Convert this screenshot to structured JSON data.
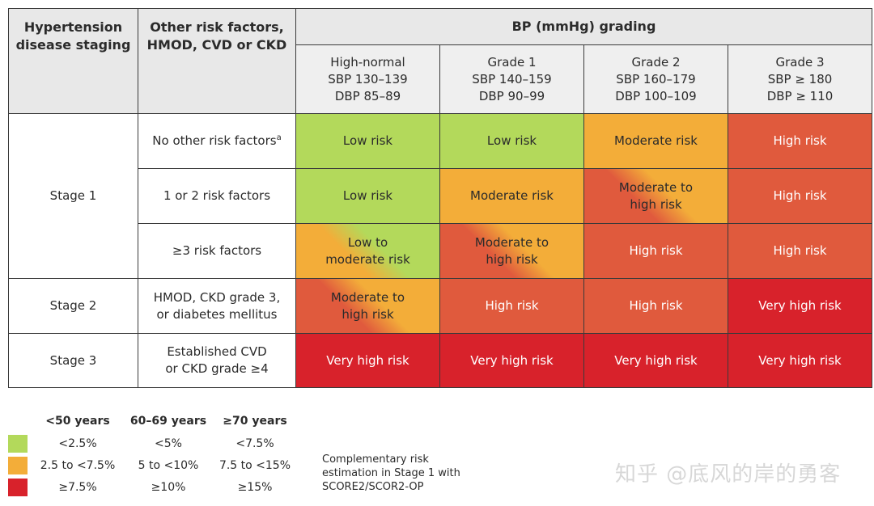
{
  "header": {
    "col1": "Hypertension disease staging",
    "col2": "Other risk factors, HMOD, CVD or CKD",
    "grading": "BP (mmHg) grading"
  },
  "grades": [
    {
      "name": "High-normal",
      "sbp": "SBP 130–139",
      "dbp": "DBP 85–89"
    },
    {
      "name": "Grade 1",
      "sbp": "SBP 140–159",
      "dbp": "DBP 90–99"
    },
    {
      "name": "Grade 2",
      "sbp": "SBP 160–179",
      "dbp": "DBP 100–109"
    },
    {
      "name": "Grade 3",
      "sbp": "SBP ≥ 180",
      "dbp": "DBP ≥ 110"
    }
  ],
  "stages": {
    "s1": "Stage 1",
    "s2": "Stage 2",
    "s3": "Stage 3"
  },
  "factors": {
    "r1": "No other risk factors",
    "r1_sup": "a",
    "r2": "1 or 2 risk factors",
    "r3": "≥3 risk factors",
    "r4": "HMOD, CKD grade 3, or diabetes mellitus",
    "r5": "Established CVD or CKD grade ≥4"
  },
  "risk": {
    "r1": [
      "Low risk",
      "Low risk",
      "Moderate risk",
      "High risk"
    ],
    "r2": [
      "Low risk",
      "Moderate risk",
      "Moderate to high risk",
      "High risk"
    ],
    "r3": [
      "Low to moderate risk",
      "Moderate to high risk",
      "High risk",
      "High risk"
    ],
    "r4": [
      "Moderate to high risk",
      "High risk",
      "High risk",
      "Very high risk"
    ],
    "r5": [
      "Very high risk",
      "Very high risk",
      "Very high risk",
      "Very high risk"
    ]
  },
  "legend": {
    "headers": [
      "<50 years",
      "60–69 years",
      "≥70 years"
    ],
    "rows": [
      {
        "color": "#b3d95b",
        "values": [
          "<2.5%",
          "<5%",
          "<7.5%"
        ]
      },
      {
        "color": "#f3ad39",
        "values": [
          "2.5 to <7.5%",
          "5 to <10%",
          "7.5 to <15%"
        ]
      },
      {
        "color": "#d8222b",
        "values": [
          "≥7.5%",
          "≥10%",
          "≥15%"
        ]
      }
    ],
    "note": "Complementary risk estimation in Stage 1 with SCORE2/SCOR2-OP"
  },
  "watermark": "知乎 @底风的岸的勇客",
  "colors": {
    "low": "#b3d95b",
    "moderate": "#f3ad39",
    "high": "#e05a3d",
    "very_high": "#d8222b"
  }
}
